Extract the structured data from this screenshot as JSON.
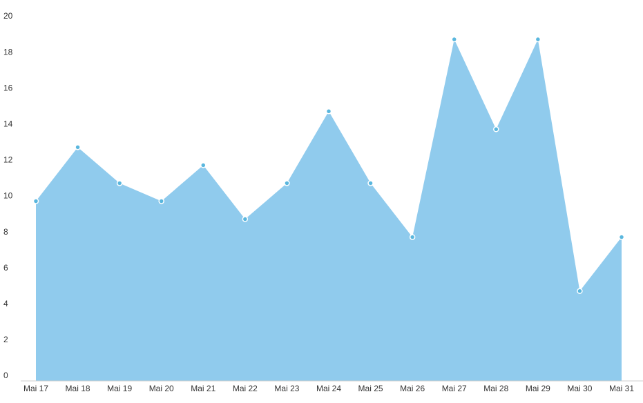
{
  "chart_data": {
    "type": "area",
    "categories": [
      "Mai 17",
      "Mai 18",
      "Mai 19",
      "Mai 20",
      "Mai 21",
      "Mai 22",
      "Mai 23",
      "Mai 24",
      "Mai 25",
      "Mai 26",
      "Mai 27",
      "Mai 28",
      "Mai 29",
      "Mai 30",
      "Mai 31"
    ],
    "values": [
      10,
      13,
      11,
      10,
      12,
      9,
      11,
      15,
      11,
      8,
      19,
      14,
      19,
      5,
      8
    ],
    "color": "#90cbed",
    "marker_color": "#5ab7de",
    "ylim": [
      0,
      20
    ],
    "yticks": [
      0,
      2,
      4,
      6,
      8,
      10,
      12,
      14,
      16,
      18,
      20
    ],
    "grid": false
  }
}
